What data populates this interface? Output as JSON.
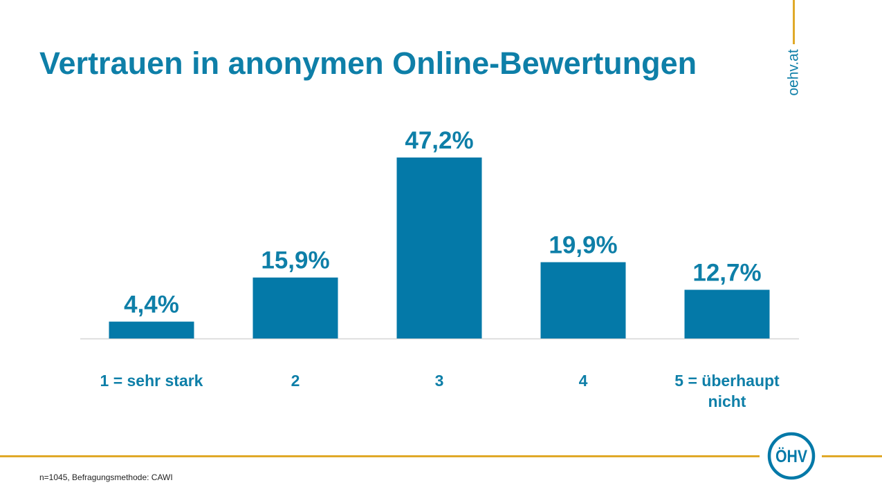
{
  "title": "Vertrauen in anonymen Online-Bewertungen",
  "brand": "oehv.at",
  "logo_text": "ÖHV",
  "footnote": "n=1045, Befragungsmethode: CAWI",
  "colors": {
    "accent": "#0e7fa8",
    "bar": "#0479a8",
    "gold": "#e0a928",
    "baseline": "#d6d6d6"
  },
  "chart_data": {
    "type": "bar",
    "categories": [
      "1 = sehr stark",
      "2",
      "3",
      "4",
      "5 = überhaupt nicht"
    ],
    "category_lines": [
      [
        "1 = sehr stark"
      ],
      [
        "2"
      ],
      [
        "3"
      ],
      [
        "4"
      ],
      [
        "5 = überhaupt",
        "nicht"
      ]
    ],
    "values": [
      4.4,
      15.9,
      47.2,
      19.9,
      12.7
    ],
    "data_labels": [
      "4,4%",
      "15,9%",
      "47,2%",
      "19,9%",
      "12,7%"
    ],
    "unit": "%",
    "ylim": [
      0,
      47.2
    ],
    "grid": false,
    "legend": "none"
  }
}
